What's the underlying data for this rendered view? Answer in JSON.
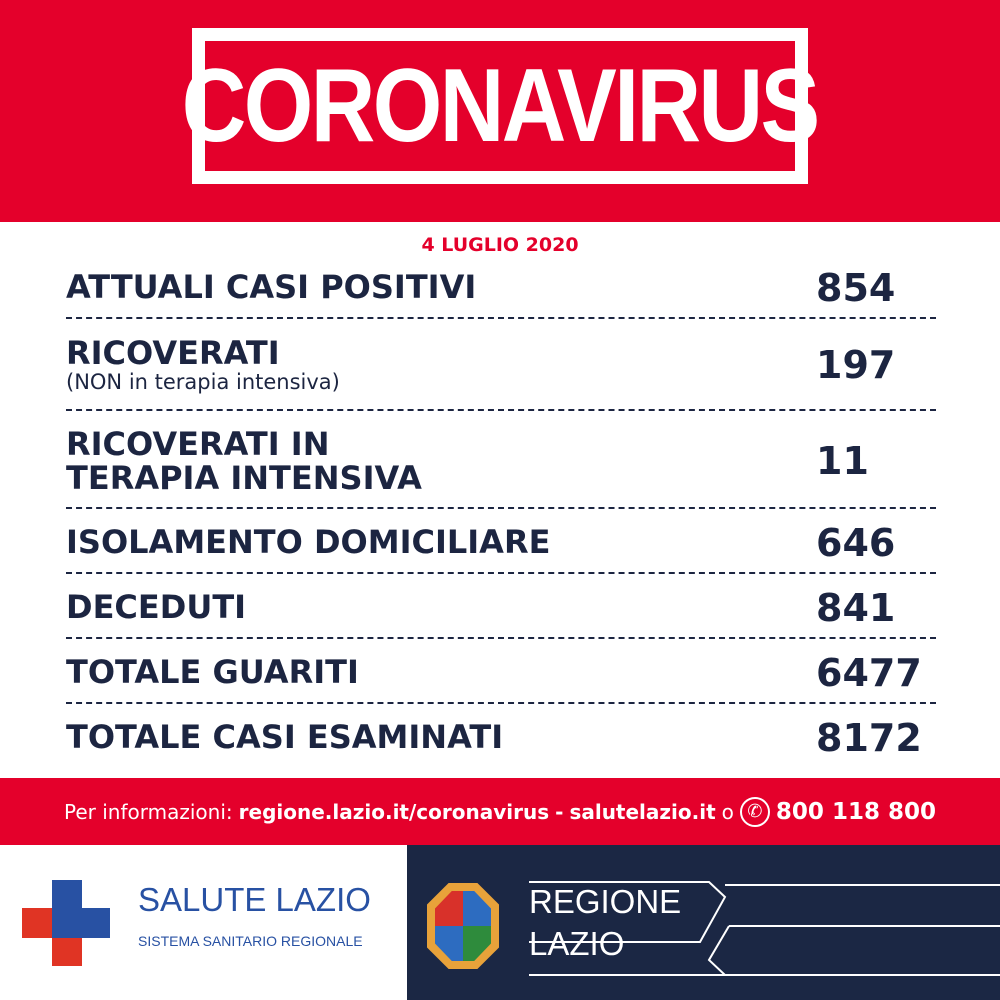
{
  "header": {
    "title": "CORONAVIRUS",
    "date": "4 LUGLIO 2020"
  },
  "rows": [
    {
      "label": "ATTUALI CASI POSITIVI",
      "value": "854"
    },
    {
      "label": "RICOVERATI",
      "sublabel": "(NON in terapia intensiva)",
      "value": "197"
    },
    {
      "label": "RICOVERATI IN",
      "label2": "TERAPIA INTENSIVA",
      "value": "11"
    },
    {
      "label": "ISOLAMENTO DOMICILIARE",
      "value": "646"
    },
    {
      "label": "DECEDUTI",
      "value": "841"
    },
    {
      "label": "TOTALE GUARITI",
      "value": "6477"
    },
    {
      "label": "TOTALE CASI ESAMINATI",
      "value": "8172"
    }
  ],
  "info": {
    "prefix": "Per informazioni:",
    "link1": "regione.lazio.it/coronavirus",
    "sep": "-",
    "link2": "salutelazio.it",
    "or": "o",
    "phone_icon": "phone-icon",
    "phone": "800 118 800"
  },
  "logos": {
    "salute_title": "SALUTE LAZIO",
    "salute_sub": "SISTEMA SANITARIO REGIONALE",
    "regione_1": "REGIONE",
    "regione_2": "LAZIO"
  },
  "colors": {
    "red": "#e4002b",
    "navy": "#1b2744",
    "text": "#1c2541"
  }
}
